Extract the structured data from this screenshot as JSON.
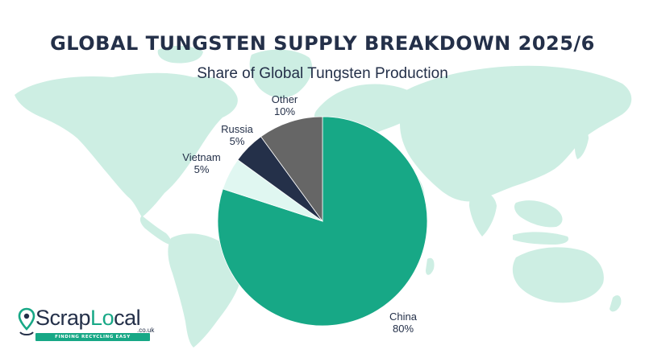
{
  "title": "GLOBAL TUNGSTEN SUPPLY BREAKDOWN 2025/6",
  "subtitle": "Share of Global Tungsten Production",
  "chart_data": {
    "type": "pie",
    "title": "GLOBAL TUNGSTEN SUPPLY BREAKDOWN 2025/6",
    "subtitle": "Share of Global Tungsten Production",
    "slices": [
      {
        "label": "China",
        "value": 80,
        "value_label": "80%",
        "color": "#17a886"
      },
      {
        "label": "Vietnam",
        "value": 5,
        "value_label": "5%",
        "color": "#e0f7f1"
      },
      {
        "label": "Russia",
        "value": 5,
        "value_label": "5%",
        "color": "#243049"
      },
      {
        "label": "Other",
        "value": 10,
        "value_label": "10%",
        "color": "#666666"
      }
    ]
  },
  "colors": {
    "title_text": "#243049",
    "map_fill": "#cdeee3",
    "brand_green": "#17a886"
  },
  "logo": {
    "word_part1": "Scrap",
    "word_part2": "Lo",
    "word_part3": "cal",
    "domain": ".co.uk",
    "tagline": "FINDING RECYCLING EASY",
    "icon": "map-pin-recycle-icon"
  }
}
